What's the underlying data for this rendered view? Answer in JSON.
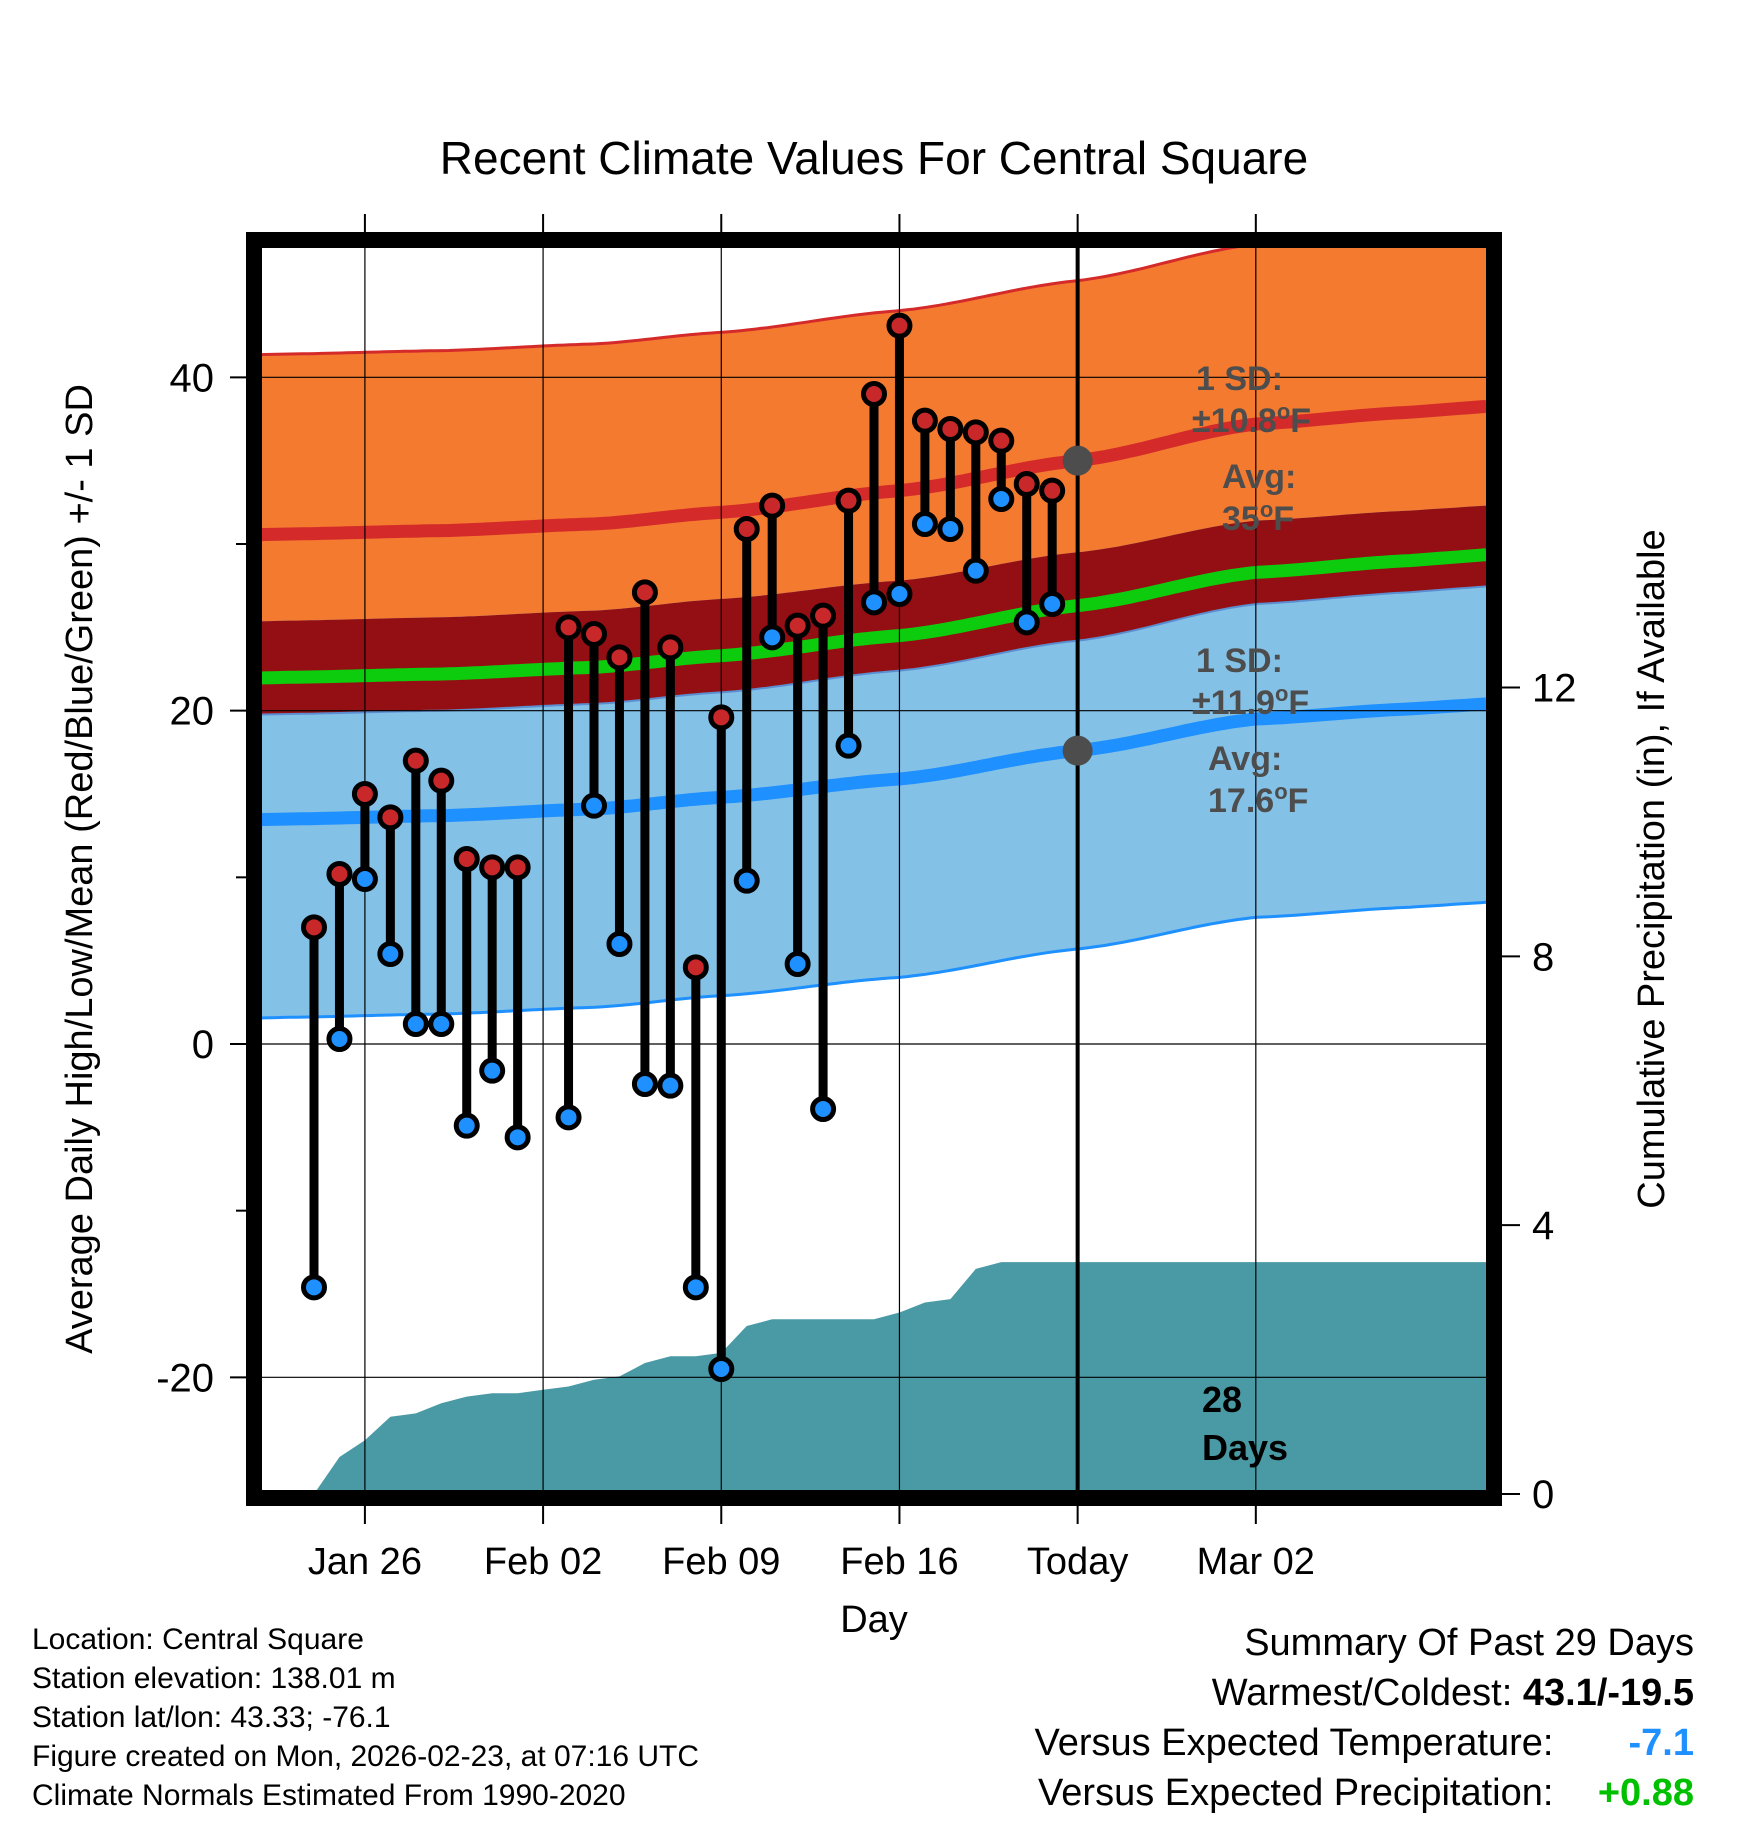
{
  "chart_data": {
    "type": "line",
    "title": "Recent Climate Values For Central Square",
    "xlabel": "Day",
    "ylabel": "Average Daily High/Low/Mean (Red/Blue/Green) +/- 1 SD",
    "y2label": "Cumulative Precipitation (in), If Available",
    "ylim": [
      -27,
      48
    ],
    "y2lim": [
      0,
      18.6
    ],
    "xlim": [
      -4.2,
      44.2
    ],
    "x_ticks": [
      {
        "day": 0,
        "label": "Jan 26"
      },
      {
        "day": 7,
        "label": "Feb 02"
      },
      {
        "day": 14,
        "label": "Feb 09"
      },
      {
        "day": 21,
        "label": "Feb 16"
      },
      {
        "day": 28,
        "label": "Today"
      },
      {
        "day": 35,
        "label": "Mar 02"
      }
    ],
    "y_ticks": [
      40,
      20,
      0,
      -20
    ],
    "y_minor_ticks": [
      30,
      10,
      -10
    ],
    "y2_ticks": [
      0,
      4,
      8,
      12
    ],
    "grid": true,
    "colors": {
      "high_band": "#f47a30",
      "high_line": "#d42a2a",
      "mean_band": "#940f13",
      "mean_line": "#0dcc0d",
      "low_band": "#84c1e7",
      "low_line": "#1e90ff",
      "precip_fill": "#4a9aa5",
      "obs_high_dot": "#c8282a",
      "obs_low_dot": "#1e90ff",
      "annotation_text": "#4d4d4d",
      "dot_today": "#4d4d4d",
      "negative_anomaly": "#1e90ff",
      "positive_anomaly": "#00c000"
    },
    "normal_high": {
      "days": [
        -3,
        3,
        9,
        14,
        21,
        28,
        35,
        41
      ],
      "mean": [
        30.6,
        30.8,
        31.2,
        31.9,
        33.2,
        35.0,
        37.2,
        37.9
      ],
      "sd": 10.8
    },
    "normal_low": {
      "days": [
        -3,
        3,
        9,
        14,
        21,
        28,
        35,
        41
      ],
      "mean": [
        13.5,
        13.7,
        14.1,
        14.8,
        15.9,
        17.6,
        19.5,
        20.1
      ],
      "sd": 11.9
    },
    "normal_mean": {
      "days": [
        -3,
        3,
        9,
        14,
        21,
        28,
        35,
        41
      ],
      "mean": [
        22.0,
        22.2,
        22.6,
        23.3,
        24.5,
        26.3,
        28.3,
        29.0
      ]
    },
    "observations": [
      {
        "day": -2,
        "high": 7.0,
        "low": -14.6
      },
      {
        "day": -1,
        "high": 10.2,
        "low": 0.3
      },
      {
        "day": 0,
        "high": 15.0,
        "low": 9.9
      },
      {
        "day": 1,
        "high": 13.6,
        "low": 5.4
      },
      {
        "day": 2,
        "high": 17.0,
        "low": 1.2
      },
      {
        "day": 3,
        "high": 15.8,
        "low": 1.2
      },
      {
        "day": 4,
        "high": 11.1,
        "low": -4.9
      },
      {
        "day": 5,
        "high": 10.6,
        "low": -1.6
      },
      {
        "day": 6,
        "high": 10.6,
        "low": -5.6
      },
      {
        "day": 8,
        "high": 25.0,
        "low": -4.4
      },
      {
        "day": 9,
        "high": 24.6,
        "low": 14.3
      },
      {
        "day": 10,
        "high": 23.2,
        "low": 6.0
      },
      {
        "day": 11,
        "high": 27.1,
        "low": -2.4
      },
      {
        "day": 12,
        "high": 23.8,
        "low": -2.5
      },
      {
        "day": 13,
        "high": 4.6,
        "low": -14.6
      },
      {
        "day": 14,
        "high": 19.6,
        "low": -19.5
      },
      {
        "day": 15,
        "high": 30.9,
        "low": 9.8
      },
      {
        "day": 16,
        "high": 32.3,
        "low": 24.4
      },
      {
        "day": 17,
        "high": 25.1,
        "low": 4.8
      },
      {
        "day": 18,
        "high": 25.7,
        "low": -3.9
      },
      {
        "day": 19,
        "high": 32.6,
        "low": 17.9
      },
      {
        "day": 20,
        "high": 39.0,
        "low": 26.5
      },
      {
        "day": 21,
        "high": 43.1,
        "low": 27.0
      },
      {
        "day": 22,
        "high": 37.4,
        "low": 31.2
      },
      {
        "day": 23,
        "high": 36.9,
        "low": 30.9
      },
      {
        "day": 24,
        "high": 36.7,
        "low": 28.4
      },
      {
        "day": 25,
        "high": 36.2,
        "low": 32.7
      },
      {
        "day": 26,
        "high": 33.6,
        "low": 25.3
      },
      {
        "day": 27,
        "high": 33.2,
        "low": 26.4
      }
    ],
    "precipitation": {
      "days": [
        -2,
        -1,
        0,
        1,
        2,
        3,
        4,
        5,
        6,
        7,
        8,
        9,
        10,
        11,
        12,
        13,
        14,
        15,
        16,
        17,
        18,
        19,
        20,
        21,
        22,
        23,
        24,
        25,
        26,
        27,
        28
      ],
      "cumulative": [
        0.0,
        0.55,
        0.8,
        1.15,
        1.2,
        1.35,
        1.45,
        1.5,
        1.5,
        1.55,
        1.6,
        1.7,
        1.75,
        1.95,
        2.05,
        2.05,
        2.1,
        2.5,
        2.6,
        2.6,
        2.6,
        2.6,
        2.6,
        2.7,
        2.85,
        2.9,
        3.35,
        3.45,
        3.45,
        3.45,
        3.45
      ]
    },
    "today_marker": {
      "day": 28,
      "days_label_number": "28",
      "days_label_unit": "Days"
    },
    "annotations": {
      "high_sd_label": "1 SD:",
      "high_sd_value": "±10.8",
      "high_avg_label": "Avg:",
      "high_avg_value": "35",
      "low_sd_label": "1 SD:",
      "low_sd_value": "±11.9",
      "low_avg_label": "Avg:",
      "low_avg_value": "17.6",
      "deg_symbol": "o",
      "unit": "F"
    }
  },
  "info": {
    "location": "Location: Central Square",
    "elevation": "Station elevation: 138.01 m",
    "latlon": "Station lat/lon: 43.33; -76.1",
    "created": "Figure created on Mon, 2026-02-23, at 07:16 UTC",
    "normals": "Climate Normals Estimated From 1990-2020"
  },
  "summary": {
    "heading": "Summary Of Past 29 Days",
    "warmest_coldest_label": "Warmest/Coldest:",
    "warmest_coldest_value": "43.1/-19.5",
    "temp_label": "Versus Expected Temperature:",
    "temp_value": "-7.1",
    "precip_label": "Versus Expected Precipitation:",
    "precip_value": "+0.88"
  }
}
